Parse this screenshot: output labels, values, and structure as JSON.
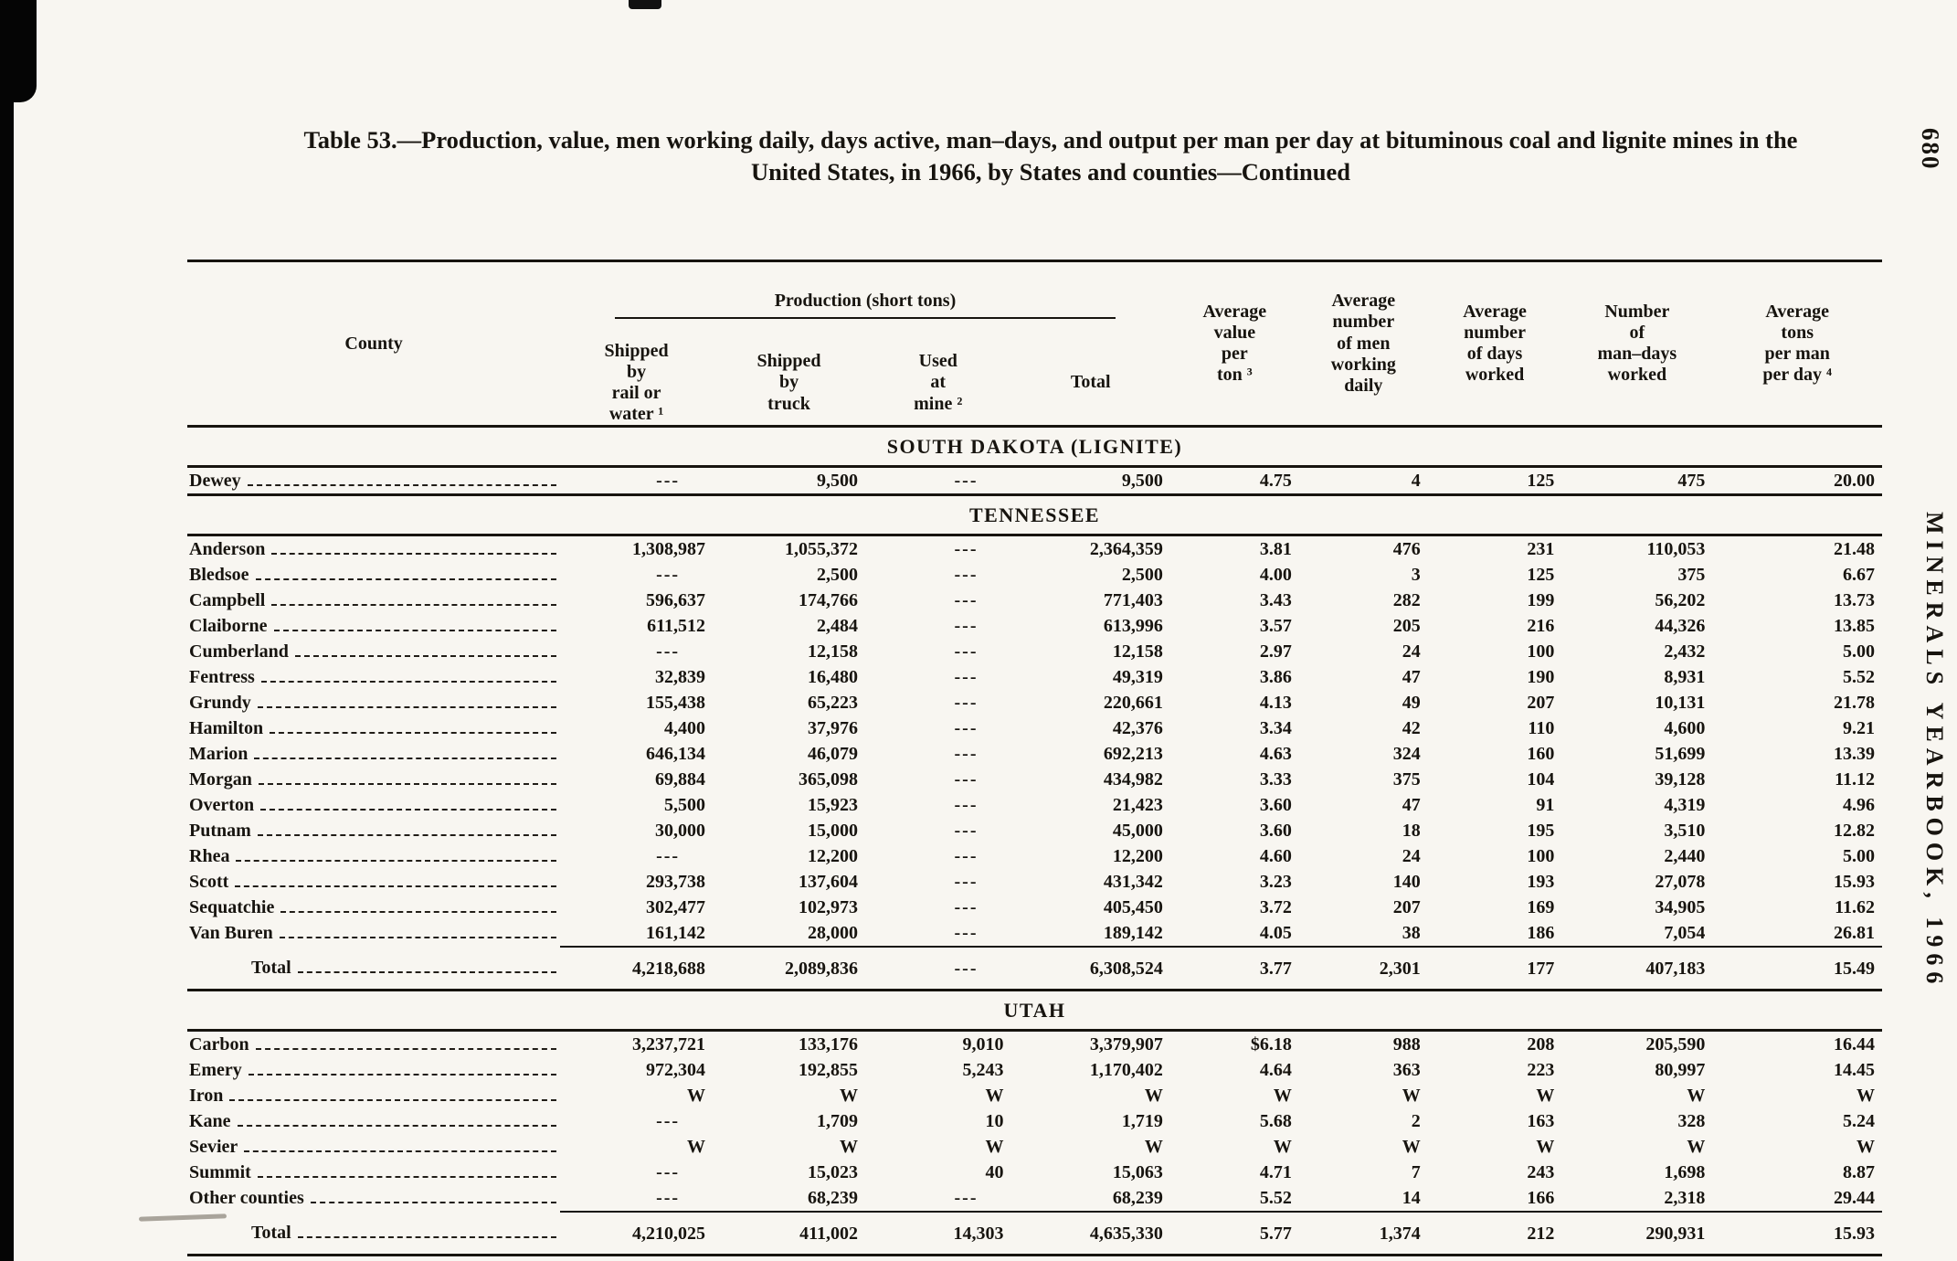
{
  "colors": {
    "paper": "#f8f6f1",
    "ink": "#17140f"
  },
  "page": {
    "page_number": "680",
    "side_label": "MINERALS YEARBOOK, 1966",
    "title_line1": "Table 53.—Production, value, men working daily, days active, man–days, and output per man per day at bituminous coal and lignite mines in the",
    "title_line2": "United States, in 1966, by States and counties—Continued"
  },
  "table": {
    "production_group_header": "Production (short tons)",
    "columns": [
      "County",
      "Shipped\nby\nrail or\nwater ¹",
      "Shipped\nby\ntruck",
      "Used\nat\nmine ²",
      "Total",
      "Average\nvalue\nper\nton ³",
      "Average\nnumber\nof men\nworking\ndaily",
      "Average\nnumber\nof days\nworked",
      "Number\nof\nman–days\nworked",
      "Average\ntons\nper man\nper day ⁴"
    ],
    "sections": [
      {
        "title": "SOUTH DAKOTA (LIGNITE)",
        "rows": [
          {
            "county": "Dewey",
            "cells": [
              "---",
              "9,500",
              "---",
              "9,500",
              "4.75",
              "4",
              "125",
              "475",
              "20.00"
            ]
          }
        ],
        "total": null
      },
      {
        "title": "TENNESSEE",
        "rows": [
          {
            "county": "Anderson",
            "cells": [
              "1,308,987",
              "1,055,372",
              "---",
              "2,364,359",
              "3.81",
              "476",
              "231",
              "110,053",
              "21.48"
            ]
          },
          {
            "county": "Bledsoe",
            "cells": [
              "---",
              "2,500",
              "---",
              "2,500",
              "4.00",
              "3",
              "125",
              "375",
              "6.67"
            ]
          },
          {
            "county": "Campbell",
            "cells": [
              "596,637",
              "174,766",
              "---",
              "771,403",
              "3.43",
              "282",
              "199",
              "56,202",
              "13.73"
            ]
          },
          {
            "county": "Claiborne",
            "cells": [
              "611,512",
              "2,484",
              "---",
              "613,996",
              "3.57",
              "205",
              "216",
              "44,326",
              "13.85"
            ]
          },
          {
            "county": "Cumberland",
            "cells": [
              "---",
              "12,158",
              "---",
              "12,158",
              "2.97",
              "24",
              "100",
              "2,432",
              "5.00"
            ]
          },
          {
            "county": "Fentress",
            "cells": [
              "32,839",
              "16,480",
              "---",
              "49,319",
              "3.86",
              "47",
              "190",
              "8,931",
              "5.52"
            ]
          },
          {
            "county": "Grundy",
            "cells": [
              "155,438",
              "65,223",
              "---",
              "220,661",
              "4.13",
              "49",
              "207",
              "10,131",
              "21.78"
            ]
          },
          {
            "county": "Hamilton",
            "cells": [
              "4,400",
              "37,976",
              "---",
              "42,376",
              "3.34",
              "42",
              "110",
              "4,600",
              "9.21"
            ]
          },
          {
            "county": "Marion",
            "cells": [
              "646,134",
              "46,079",
              "---",
              "692,213",
              "4.63",
              "324",
              "160",
              "51,699",
              "13.39"
            ]
          },
          {
            "county": "Morgan",
            "cells": [
              "69,884",
              "365,098",
              "---",
              "434,982",
              "3.33",
              "375",
              "104",
              "39,128",
              "11.12"
            ]
          },
          {
            "county": "Overton",
            "cells": [
              "5,500",
              "15,923",
              "---",
              "21,423",
              "3.60",
              "47",
              "91",
              "4,319",
              "4.96"
            ]
          },
          {
            "county": "Putnam",
            "cells": [
              "30,000",
              "15,000",
              "---",
              "45,000",
              "3.60",
              "18",
              "195",
              "3,510",
              "12.82"
            ]
          },
          {
            "county": "Rhea",
            "cells": [
              "---",
              "12,200",
              "---",
              "12,200",
              "4.60",
              "24",
              "100",
              "2,440",
              "5.00"
            ]
          },
          {
            "county": "Scott",
            "cells": [
              "293,738",
              "137,604",
              "---",
              "431,342",
              "3.23",
              "140",
              "193",
              "27,078",
              "15.93"
            ]
          },
          {
            "county": "Sequatchie",
            "cells": [
              "302,477",
              "102,973",
              "---",
              "405,450",
              "3.72",
              "207",
              "169",
              "34,905",
              "11.62"
            ]
          },
          {
            "county": "Van Buren",
            "cells": [
              "161,142",
              "28,000",
              "---",
              "189,142",
              "4.05",
              "38",
              "186",
              "7,054",
              "26.81"
            ]
          }
        ],
        "total": {
          "label": "Total",
          "cells": [
            "4,218,688",
            "2,089,836",
            "---",
            "6,308,524",
            "3.77",
            "2,301",
            "177",
            "407,183",
            "15.49"
          ]
        }
      },
      {
        "title": "UTAH",
        "rows": [
          {
            "county": "Carbon",
            "cells": [
              "3,237,721",
              "133,176",
              "9,010",
              "3,379,907",
              "$6.18",
              "988",
              "208",
              "205,590",
              "16.44"
            ]
          },
          {
            "county": "Emery",
            "cells": [
              "972,304",
              "192,855",
              "5,243",
              "1,170,402",
              "4.64",
              "363",
              "223",
              "80,997",
              "14.45"
            ]
          },
          {
            "county": "Iron",
            "cells": [
              "W",
              "W",
              "W",
              "W",
              "W",
              "W",
              "W",
              "W",
              "W"
            ]
          },
          {
            "county": "Kane",
            "cells": [
              "---",
              "1,709",
              "10",
              "1,719",
              "5.68",
              "2",
              "163",
              "328",
              "5.24"
            ]
          },
          {
            "county": "Sevier",
            "cells": [
              "W",
              "W",
              "W",
              "W",
              "W",
              "W",
              "W",
              "W",
              "W"
            ]
          },
          {
            "county": "Summit",
            "cells": [
              "---",
              "15,023",
              "40",
              "15,063",
              "4.71",
              "7",
              "243",
              "1,698",
              "8.87"
            ]
          },
          {
            "county": "Other counties",
            "cells": [
              "---",
              "68,239",
              "---",
              "68,239",
              "5.52",
              "14",
              "166",
              "2,318",
              "29.44"
            ]
          }
        ],
        "total": {
          "label": "Total",
          "cells": [
            "4,210,025",
            "411,002",
            "14,303",
            "4,635,330",
            "5.77",
            "1,374",
            "212",
            "290,931",
            "15.93"
          ]
        }
      }
    ]
  }
}
